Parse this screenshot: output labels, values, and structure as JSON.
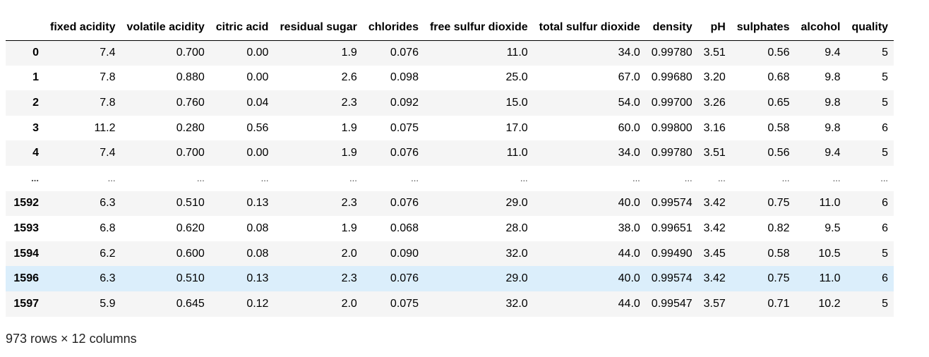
{
  "table": {
    "index_header": "",
    "columns": [
      "fixed acidity",
      "volatile acidity",
      "citric acid",
      "residual sugar",
      "chlorides",
      "free sulfur dioxide",
      "total sulfur dioxide",
      "density",
      "pH",
      "sulphates",
      "alcohol",
      "quality"
    ],
    "rows": [
      {
        "index": "0",
        "cells": [
          "7.4",
          "0.700",
          "0.00",
          "1.9",
          "0.076",
          "11.0",
          "34.0",
          "0.99780",
          "3.51",
          "0.56",
          "9.4",
          "5"
        ]
      },
      {
        "index": "1",
        "cells": [
          "7.8",
          "0.880",
          "0.00",
          "2.6",
          "0.098",
          "25.0",
          "67.0",
          "0.99680",
          "3.20",
          "0.68",
          "9.8",
          "5"
        ]
      },
      {
        "index": "2",
        "cells": [
          "7.8",
          "0.760",
          "0.04",
          "2.3",
          "0.092",
          "15.0",
          "54.0",
          "0.99700",
          "3.26",
          "0.65",
          "9.8",
          "5"
        ]
      },
      {
        "index": "3",
        "cells": [
          "11.2",
          "0.280",
          "0.56",
          "1.9",
          "0.075",
          "17.0",
          "60.0",
          "0.99800",
          "3.16",
          "0.58",
          "9.8",
          "6"
        ]
      },
      {
        "index": "4",
        "cells": [
          "7.4",
          "0.700",
          "0.00",
          "1.9",
          "0.076",
          "11.0",
          "34.0",
          "0.99780",
          "3.51",
          "0.56",
          "9.4",
          "5"
        ]
      },
      {
        "index": "...",
        "cells": [
          "...",
          "...",
          "...",
          "...",
          "...",
          "...",
          "...",
          "...",
          "...",
          "...",
          "...",
          "..."
        ]
      },
      {
        "index": "1592",
        "cells": [
          "6.3",
          "0.510",
          "0.13",
          "2.3",
          "0.076",
          "29.0",
          "40.0",
          "0.99574",
          "3.42",
          "0.75",
          "11.0",
          "6"
        ]
      },
      {
        "index": "1593",
        "cells": [
          "6.8",
          "0.620",
          "0.08",
          "1.9",
          "0.068",
          "28.0",
          "38.0",
          "0.99651",
          "3.42",
          "0.82",
          "9.5",
          "6"
        ]
      },
      {
        "index": "1594",
        "cells": [
          "6.2",
          "0.600",
          "0.08",
          "2.0",
          "0.090",
          "32.0",
          "44.0",
          "0.99490",
          "3.45",
          "0.58",
          "10.5",
          "5"
        ]
      },
      {
        "index": "1596",
        "cells": [
          "6.3",
          "0.510",
          "0.13",
          "2.3",
          "0.076",
          "29.0",
          "40.0",
          "0.99574",
          "3.42",
          "0.75",
          "11.0",
          "6"
        ]
      },
      {
        "index": "1597",
        "cells": [
          "5.9",
          "0.645",
          "0.12",
          "2.0",
          "0.075",
          "32.0",
          "44.0",
          "0.99547",
          "3.57",
          "0.71",
          "10.2",
          "5"
        ]
      }
    ],
    "highlighted_row_index": "1596",
    "shape_text": "973 rows × 12 columns"
  },
  "colors": {
    "stripe": "#f5f5f5",
    "hover_highlight": "#dbeefb",
    "header_border": "#000000"
  }
}
